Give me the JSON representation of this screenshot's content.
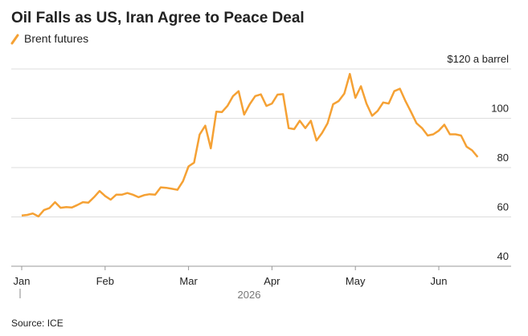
{
  "chart_data": {
    "type": "line",
    "title": "Oil Falls as US, Iran Agree to Peace Deal",
    "x_label": "2026",
    "source": "Source: ICE",
    "categories": [
      "Jan",
      null,
      null,
      null,
      null,
      null,
      null,
      null,
      null,
      null,
      null,
      null,
      null,
      null,
      null,
      "Feb",
      null,
      null,
      null,
      null,
      null,
      null,
      null,
      null,
      null,
      null,
      null,
      null,
      null,
      null,
      "Mar",
      null,
      null,
      null,
      null,
      null,
      null,
      null,
      null,
      null,
      null,
      null,
      null,
      null,
      null,
      "Apr",
      null,
      null,
      null,
      null,
      null,
      null,
      null,
      null,
      null,
      null,
      null,
      null,
      null,
      null,
      "May",
      null,
      null,
      null,
      null,
      null,
      null,
      null,
      null,
      null,
      null,
      null,
      null,
      null,
      null,
      "Jun",
      null,
      null,
      null,
      null,
      null,
      null,
      null
    ],
    "series": [
      {
        "name": "Brent futures",
        "color": "#f5a134",
        "values": [
          60.6,
          60.8,
          61.4,
          60.2,
          62.8,
          63.6,
          66,
          63.7,
          64,
          63.8,
          64.8,
          66,
          65.8,
          68,
          70.5,
          68.5,
          67,
          69,
          69,
          69.7,
          69,
          68,
          68.8,
          69.2,
          69,
          72,
          71.8,
          71.4,
          71,
          74.5,
          80.5,
          82,
          93.4,
          97,
          87.8,
          102.7,
          102.5,
          105,
          109,
          111,
          101.5,
          105.7,
          109,
          109.7,
          105,
          106,
          109.6,
          109.8,
          96,
          95.6,
          99,
          96,
          99,
          91,
          94,
          98,
          105.7,
          107,
          110,
          118,
          108.3,
          113,
          106,
          101,
          103,
          106.4,
          106,
          111,
          112,
          107,
          102.6,
          98,
          96,
          93,
          93.5,
          95,
          97.4,
          93.5,
          93.5,
          93,
          88.5,
          87,
          84.3
        ]
      }
    ],
    "ylim": [
      40,
      120
    ],
    "yticks": [
      40,
      60,
      80,
      100,
      {
        "value": 120,
        "label": "$120 a barrel"
      }
    ],
    "grid": true
  }
}
